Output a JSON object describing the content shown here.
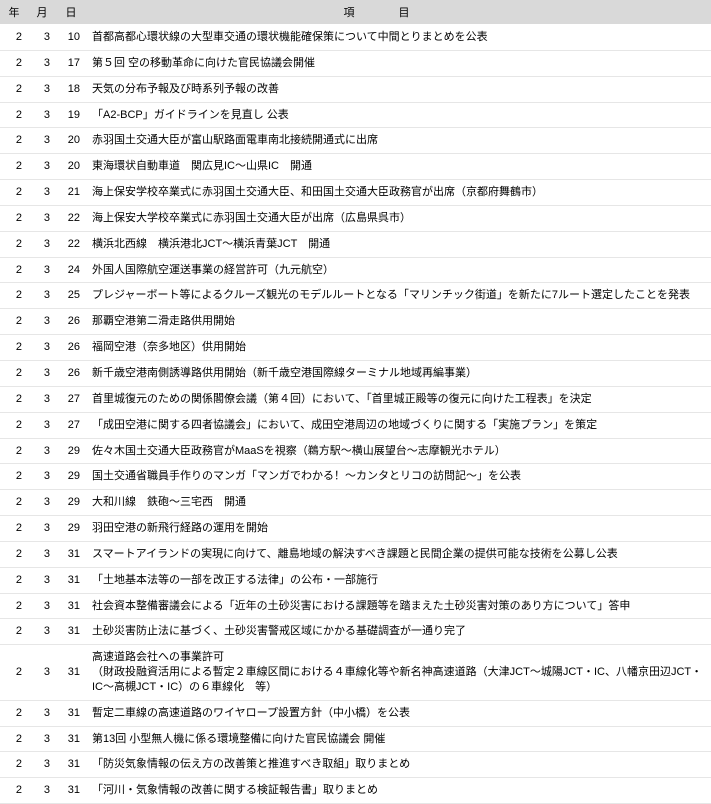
{
  "header": {
    "year": "年",
    "month": "月",
    "day": "日",
    "item": "項目"
  },
  "rows": [
    {
      "y": "2",
      "m": "3",
      "d": "10",
      "t": "首都高都心環状線の大型車交通の環状機能確保策について中間とりまとめを公表"
    },
    {
      "y": "2",
      "m": "3",
      "d": "17",
      "t": "第５回 空の移動革命に向けた官民協議会開催"
    },
    {
      "y": "2",
      "m": "3",
      "d": "18",
      "t": "天気の分布予報及び時系列予報の改善"
    },
    {
      "y": "2",
      "m": "3",
      "d": "19",
      "t": "「A2-BCP」ガイドラインを見直し 公表"
    },
    {
      "y": "2",
      "m": "3",
      "d": "20",
      "t": "赤羽国土交通大臣が富山駅路面電車南北接続開通式に出席"
    },
    {
      "y": "2",
      "m": "3",
      "d": "20",
      "t": "東海環状自動車道　関広見IC～山県IC　開通"
    },
    {
      "y": "2",
      "m": "3",
      "d": "21",
      "t": "海上保安学校卒業式に赤羽国土交通大臣、和田国土交通大臣政務官が出席（京都府舞鶴市）"
    },
    {
      "y": "2",
      "m": "3",
      "d": "22",
      "t": "海上保安大学校卒業式に赤羽国土交通大臣が出席（広島県呉市）"
    },
    {
      "y": "2",
      "m": "3",
      "d": "22",
      "t": "横浜北西線　横浜港北JCT～横浜青葉JCT　開通"
    },
    {
      "y": "2",
      "m": "3",
      "d": "24",
      "t": "外国人国際航空運送事業の経営許可（九元航空）"
    },
    {
      "y": "2",
      "m": "3",
      "d": "25",
      "t": "プレジャーボート等によるクルーズ観光のモデルルートとなる「マリンチック街道」を新たに7ルート選定したことを発表"
    },
    {
      "y": "2",
      "m": "3",
      "d": "26",
      "t": "那覇空港第二滑走路供用開始"
    },
    {
      "y": "2",
      "m": "3",
      "d": "26",
      "t": "福岡空港（奈多地区）供用開始"
    },
    {
      "y": "2",
      "m": "3",
      "d": "26",
      "t": "新千歳空港南側誘導路供用開始（新千歳空港国際線ターミナル地域再編事業）"
    },
    {
      "y": "2",
      "m": "3",
      "d": "27",
      "t": "首里城復元のための関係閣僚会議（第４回）において、「首里城正殿等の復元に向けた工程表」を決定"
    },
    {
      "y": "2",
      "m": "3",
      "d": "27",
      "t": "「成田空港に関する四者協議会」において、成田空港周辺の地域づくりに関する「実施プラン」を策定"
    },
    {
      "y": "2",
      "m": "3",
      "d": "29",
      "t": "佐々木国土交通大臣政務官がMaaSを視察（鵜方駅～横山展望台～志摩観光ホテル）"
    },
    {
      "y": "2",
      "m": "3",
      "d": "29",
      "t": "国土交通省職員手作りのマンガ「マンガでわかる！～カンタとリコの訪問記～」を公表"
    },
    {
      "y": "2",
      "m": "3",
      "d": "29",
      "t": "大和川線　鉄砲～三宅西　開通"
    },
    {
      "y": "2",
      "m": "3",
      "d": "29",
      "t": "羽田空港の新飛行経路の運用を開始"
    },
    {
      "y": "2",
      "m": "3",
      "d": "31",
      "t": "スマートアイランドの実現に向けて、離島地域の解決すべき課題と民間企業の提供可能な技術を公募し公表"
    },
    {
      "y": "2",
      "m": "3",
      "d": "31",
      "t": "「土地基本法等の一部を改正する法律」の公布・一部施行"
    },
    {
      "y": "2",
      "m": "3",
      "d": "31",
      "t": "社会資本整備審議会による「近年の土砂災害における課題等を踏まえた土砂災害対策のあり方について」答申"
    },
    {
      "y": "2",
      "m": "3",
      "d": "31",
      "t": "土砂災害防止法に基づく、土砂災害警戒区域にかかる基礎調査が一通り完了"
    },
    {
      "y": "2",
      "m": "3",
      "d": "31",
      "t": "高速道路会社への事業許可\n（財政投融資活用による暫定２車線区間における４車線化等や新名神高速道路（大津JCT～城陽JCT・IC、八幡京田辺JCT・IC～高槻JCT・IC）の６車線化　等）"
    },
    {
      "y": "2",
      "m": "3",
      "d": "31",
      "t": "暫定二車線の高速道路のワイヤロープ設置方針（中小橋）を公表"
    },
    {
      "y": "2",
      "m": "3",
      "d": "31",
      "t": "第13回 小型無人機に係る環境整備に向けた官民協議会 開催"
    },
    {
      "y": "2",
      "m": "3",
      "d": "31",
      "t": "「防災気象情報の伝え方の改善策と推進すべき取組」取りまとめ"
    },
    {
      "y": "2",
      "m": "3",
      "d": "31",
      "t": "「河川・気象情報の改善に関する検証報告書」取りまとめ"
    }
  ]
}
